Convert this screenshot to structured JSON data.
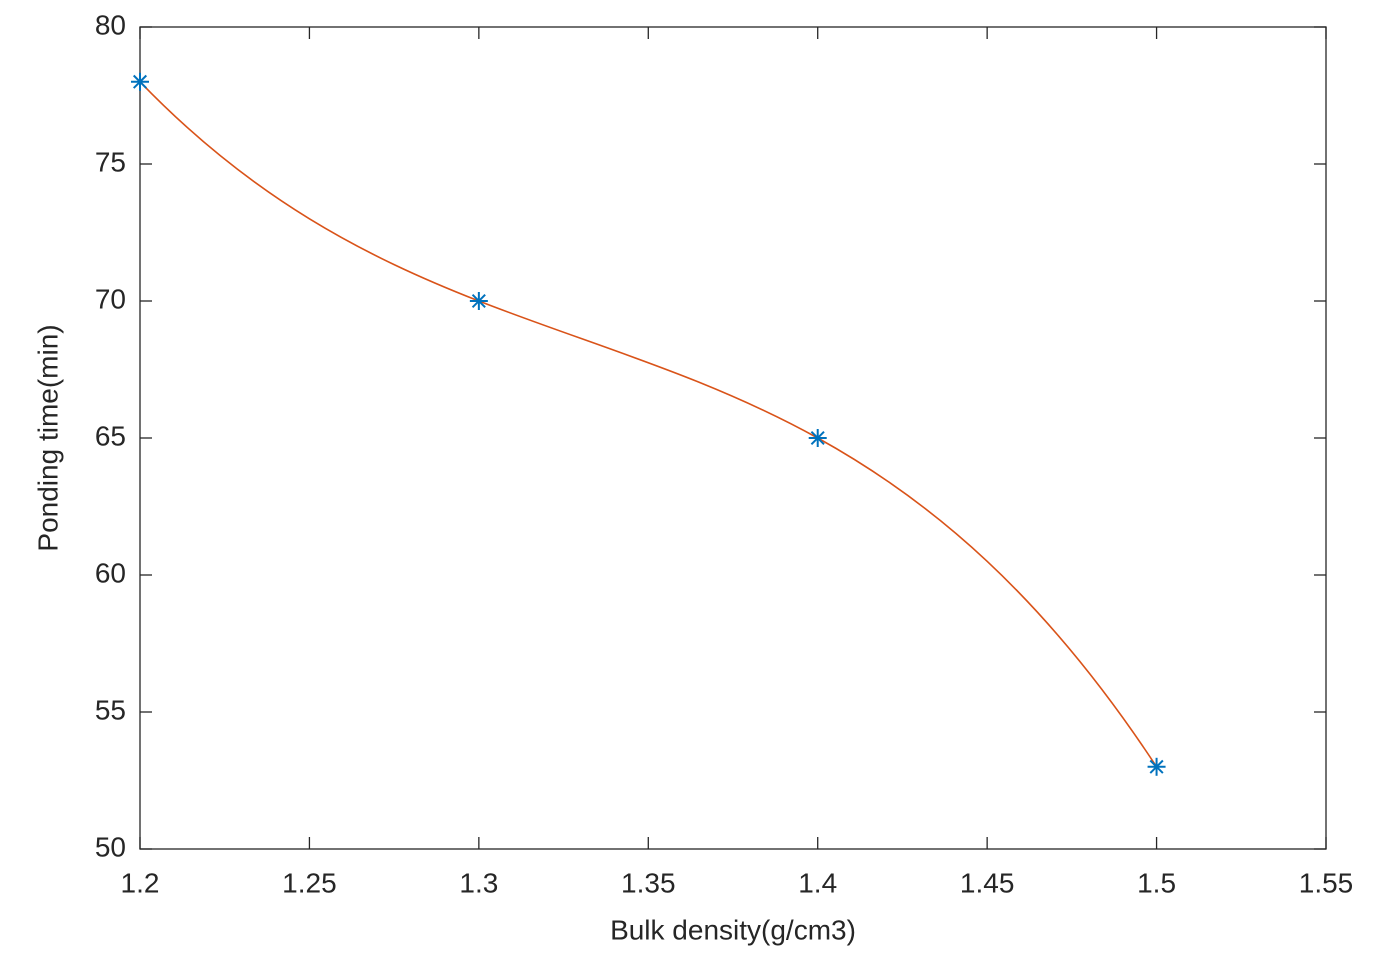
{
  "chart_data": {
    "type": "line",
    "x_label": "Bulk density(g/cm3)",
    "y_label": "Ponding time(min)",
    "x": [
      1.2,
      1.3,
      1.4,
      1.5
    ],
    "series": [
      {
        "values": [
          78,
          70,
          65,
          53
        ],
        "color": "#0072bd",
        "line_color": "#d95319",
        "marker": "*",
        "smooth": true
      }
    ],
    "xlim": [
      1.2,
      1.55
    ],
    "xticks": [
      1.2,
      1.25,
      1.3,
      1.35,
      1.4,
      1.45,
      1.5,
      1.55
    ],
    "ylim": [
      50,
      80
    ],
    "yticks": [
      50,
      55,
      60,
      65,
      70,
      75,
      80
    ],
    "grid": false,
    "box": true
  }
}
